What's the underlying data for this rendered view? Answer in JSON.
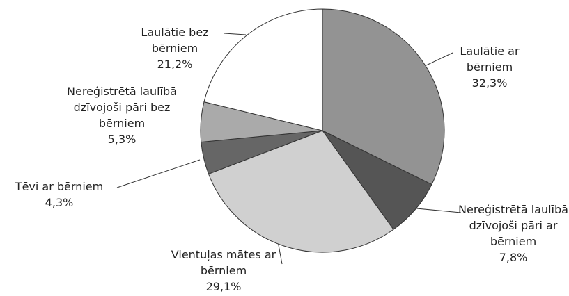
{
  "chart_data": {
    "type": "pie",
    "categories": [
      "Laulātie ar bērniem",
      "Nereģistrētā laulībā dzīvojoši pāri ar bērniem",
      "Vientuļas mātes ar bērniem",
      "Tēvi ar bērniem",
      "Nereģistrētā laulībā dzīvojoši pāri bez bērniem",
      "Laulātie bez bērniem"
    ],
    "values": [
      32.3,
      7.8,
      29.1,
      4.3,
      5.3,
      21.2
    ],
    "value_labels": [
      "32,3%",
      "7,8%",
      "29,1%",
      "4,3%",
      "5,3%",
      "21,2%"
    ],
    "colors": [
      "#939393",
      "#555555",
      "#d0d0d0",
      "#666666",
      "#aaaaaa",
      "#ffffff"
    ]
  }
}
